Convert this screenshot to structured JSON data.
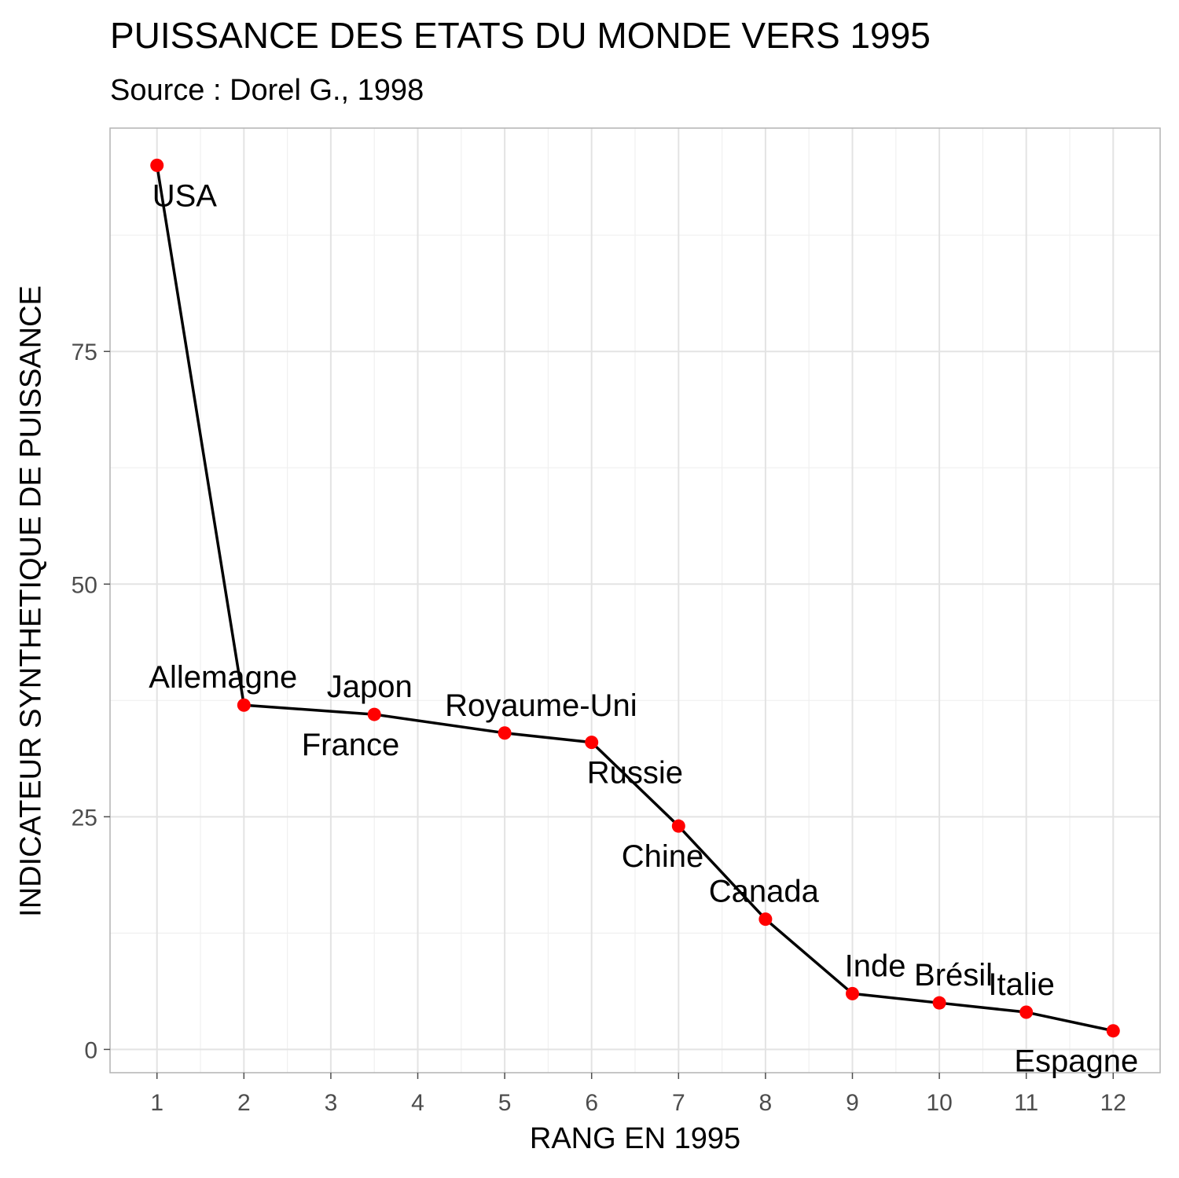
{
  "chart_data": {
    "type": "line",
    "title": "PUISSANCE DES ETATS DU MONDE VERS 1995",
    "subtitle": "Source : Dorel G., 1998",
    "xlabel": "RANG EN 1995",
    "ylabel": "INDICATEUR SYNTHETIQUE DE PUISSANCE",
    "xlim": [
      0.46,
      12.54
    ],
    "ylim": [
      -2.5,
      99
    ],
    "x_ticks": [
      1,
      2,
      3,
      4,
      5,
      6,
      7,
      8,
      9,
      10,
      11,
      12
    ],
    "x_tick_labels": [
      "1",
      "2",
      "3",
      "4",
      "5",
      "6",
      "7",
      "8",
      "9",
      "10",
      "11",
      "12"
    ],
    "y_ticks": [
      0,
      25,
      50,
      75
    ],
    "y_tick_labels": [
      "0",
      "25",
      "50",
      "75"
    ],
    "grid": true,
    "line_color": "#000000",
    "point_color": "#ff0000",
    "points": [
      {
        "x": 1,
        "y": 95,
        "label": "USA",
        "pos": "below-right"
      },
      {
        "x": 2,
        "y": 37,
        "label": "Allemagne",
        "pos": "above-left"
      },
      {
        "x": 3.5,
        "y": 36,
        "label": "Japon",
        "pos": "above"
      },
      {
        "x": 3.5,
        "y": 36,
        "label": "France",
        "pos": "below-left"
      },
      {
        "x": 5,
        "y": 34,
        "label": "Royaume-Uni",
        "pos": "above-right"
      },
      {
        "x": 6,
        "y": 33,
        "label": "Russie",
        "pos": "below-right"
      },
      {
        "x": 7,
        "y": 24,
        "label": "Chine",
        "pos": "below-left"
      },
      {
        "x": 8,
        "y": 14,
        "label": "Canada",
        "pos": "above-left"
      },
      {
        "x": 9,
        "y": 6,
        "label": "Inde",
        "pos": "above-left"
      },
      {
        "x": 10,
        "y": 5,
        "label": "Brésil",
        "pos": "above-left"
      },
      {
        "x": 11,
        "y": 4,
        "label": "Italie",
        "pos": "above"
      },
      {
        "x": 12,
        "y": 2,
        "label": "Espagne",
        "pos": "below-left"
      }
    ]
  }
}
